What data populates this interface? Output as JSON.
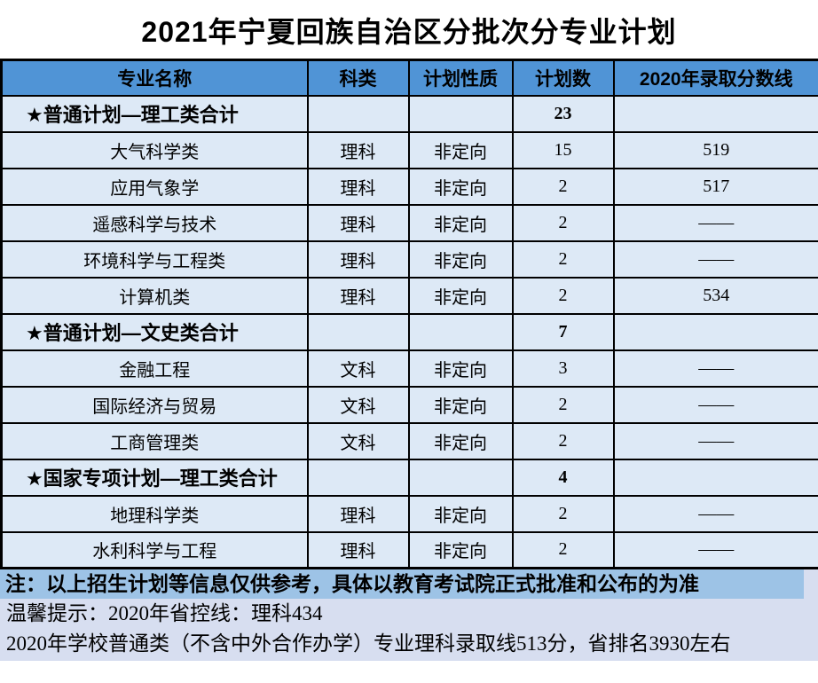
{
  "title": "2021年宁夏回族自治区分批次分专业计划",
  "table": {
    "headers": [
      "专业名称",
      "科类",
      "计划性质",
      "计划数",
      "2020年录取分数线"
    ],
    "rows": [
      {
        "type": "summary",
        "major": "★普通计划—理工类合计",
        "subject": "",
        "nature": "",
        "count": "23",
        "score": ""
      },
      {
        "type": "major",
        "major": "大气科学类",
        "subject": "理科",
        "nature": "非定向",
        "count": "15",
        "score": "519"
      },
      {
        "type": "major",
        "major": "应用气象学",
        "subject": "理科",
        "nature": "非定向",
        "count": "2",
        "score": "517"
      },
      {
        "type": "major",
        "major": "遥感科学与技术",
        "subject": "理科",
        "nature": "非定向",
        "count": "2",
        "score": "——"
      },
      {
        "type": "major",
        "major": "环境科学与工程类",
        "subject": "理科",
        "nature": "非定向",
        "count": "2",
        "score": "——"
      },
      {
        "type": "major",
        "major": "计算机类",
        "subject": "理科",
        "nature": "非定向",
        "count": "2",
        "score": "534"
      },
      {
        "type": "summary",
        "major": "★普通计划—文史类合计",
        "subject": "",
        "nature": "",
        "count": "7",
        "score": ""
      },
      {
        "type": "major",
        "major": "金融工程",
        "subject": "文科",
        "nature": "非定向",
        "count": "3",
        "score": "——"
      },
      {
        "type": "major",
        "major": "国际经济与贸易",
        "subject": "文科",
        "nature": "非定向",
        "count": "2",
        "score": "——"
      },
      {
        "type": "major",
        "major": "工商管理类",
        "subject": "文科",
        "nature": "非定向",
        "count": "2",
        "score": "——"
      },
      {
        "type": "summary",
        "major": "★国家专项计划—理工类合计",
        "subject": "",
        "nature": "",
        "count": "4",
        "score": ""
      },
      {
        "type": "major",
        "major": "地理科学类",
        "subject": "理科",
        "nature": "非定向",
        "count": "2",
        "score": "——"
      },
      {
        "type": "major",
        "major": "水利科学与工程",
        "subject": "理科",
        "nature": "非定向",
        "count": "2",
        "score": "——"
      }
    ]
  },
  "footer": {
    "note": "注：以上招生计划等信息仅供参考，具体以教育考试院正式批准和公布的为准",
    "tip1": "温馨提示：2020年省控线：理科434",
    "tip2": "2020年学校普通类（不含中外合作办学）专业理科录取线513分，省排名3930左右"
  },
  "colors": {
    "header_bg": "#5094d6",
    "row_bg": "#dde9f6",
    "note_bg": "#9dc3e6",
    "footer_bg": "#d7def0",
    "border": "#000000",
    "text": "#000000"
  }
}
